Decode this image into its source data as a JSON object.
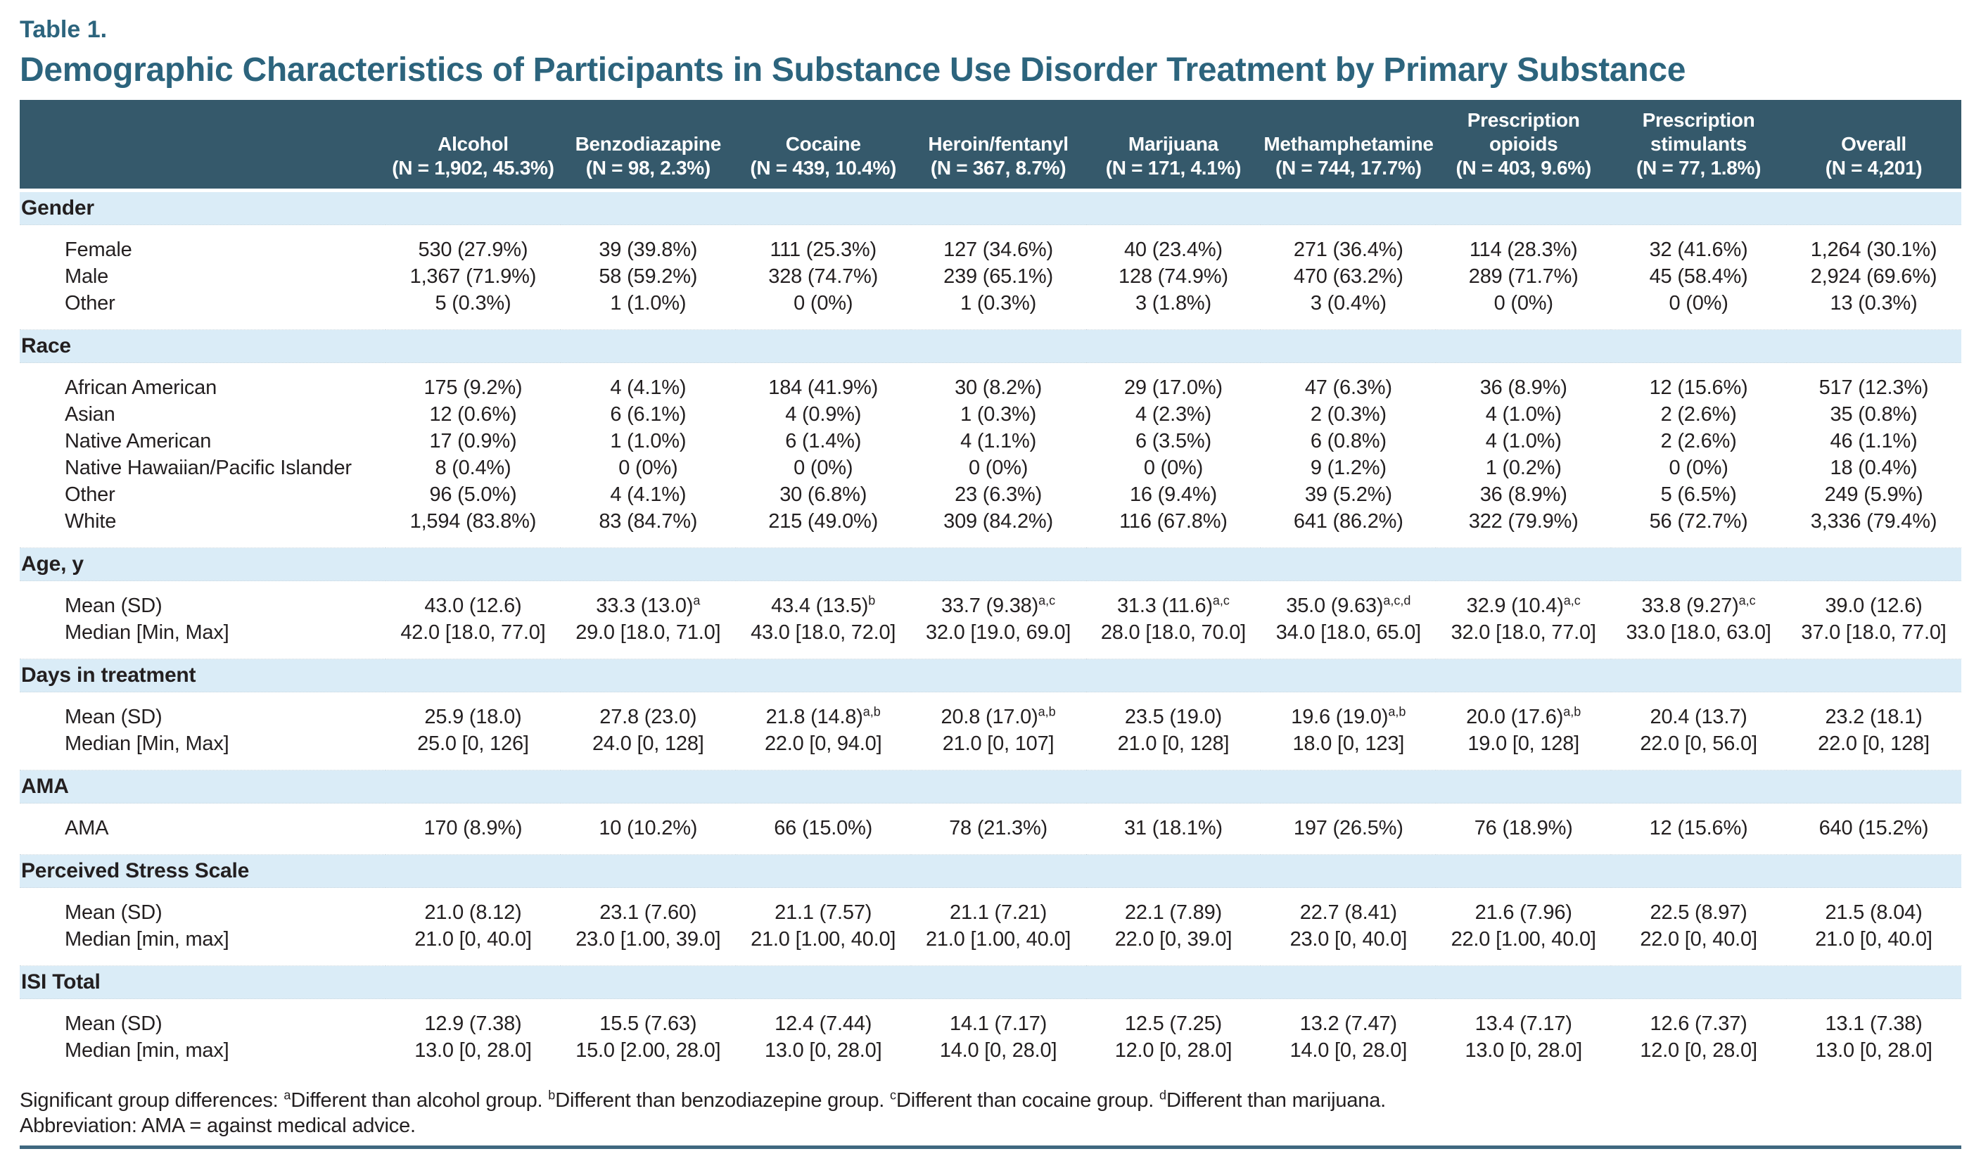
{
  "page": {
    "table_label": "Table 1.",
    "title": "Demographic Characteristics of Participants in Substance Use Disorder Treatment by Primary Substance"
  },
  "colors": {
    "header_bg": "#35596B",
    "section_band_bg": "#DAECF7",
    "title_accent": "#2C647D",
    "bottom_rule": "#3F6880",
    "body_text": "#231F20",
    "header_text": "#FFFFFF"
  },
  "table": {
    "columns": [
      {
        "name": "",
        "n": ""
      },
      {
        "name": "Alcohol",
        "n": "(N = 1,902, 45.3%)"
      },
      {
        "name": "Benzodiazapine",
        "n": "(N = 98, 2.3%)"
      },
      {
        "name": "Cocaine",
        "n": "(N = 439, 10.4%)"
      },
      {
        "name": "Heroin/fentanyl",
        "n": "(N = 367, 8.7%)"
      },
      {
        "name": "Marijuana",
        "n": "(N = 171, 4.1%)"
      },
      {
        "name": "Methamphetamine",
        "n": "(N = 744, 17.7%)"
      },
      {
        "name": "Prescription opioids",
        "n": "(N = 403, 9.6%)"
      },
      {
        "name": "Prescription stimulants",
        "n": "(N = 77, 1.8%)"
      },
      {
        "name": "Overall",
        "n": "(N = 4,201)"
      }
    ],
    "sections": [
      {
        "label": "Gender",
        "rows": [
          {
            "label": "Female",
            "cells": [
              "530 (27.9%)",
              "39 (39.8%)",
              "111 (25.3%)",
              "127 (34.6%)",
              "40 (23.4%)",
              "271 (36.4%)",
              "114 (28.3%)",
              "32 (41.6%)",
              "1,264 (30.1%)"
            ]
          },
          {
            "label": "Male",
            "cells": [
              "1,367 (71.9%)",
              "58 (59.2%)",
              "328 (74.7%)",
              "239 (65.1%)",
              "128 (74.9%)",
              "470 (63.2%)",
              "289 (71.7%)",
              "45 (58.4%)",
              "2,924 (69.6%)"
            ]
          },
          {
            "label": "Other",
            "cells": [
              "5 (0.3%)",
              "1 (1.0%)",
              "0 (0%)",
              "1 (0.3%)",
              "3 (1.8%)",
              "3 (0.4%)",
              "0 (0%)",
              "0 (0%)",
              "13 (0.3%)"
            ]
          }
        ]
      },
      {
        "label": "Race",
        "rows": [
          {
            "label": "African American",
            "cells": [
              "175 (9.2%)",
              "4 (4.1%)",
              "184 (41.9%)",
              "30 (8.2%)",
              "29 (17.0%)",
              "47 (6.3%)",
              "36 (8.9%)",
              "12 (15.6%)",
              "517 (12.3%)"
            ]
          },
          {
            "label": "Asian",
            "cells": [
              "12 (0.6%)",
              "6 (6.1%)",
              "4 (0.9%)",
              "1 (0.3%)",
              "4 (2.3%)",
              "2 (0.3%)",
              "4 (1.0%)",
              "2 (2.6%)",
              "35 (0.8%)"
            ]
          },
          {
            "label": "Native American",
            "cells": [
              "17 (0.9%)",
              "1 (1.0%)",
              "6 (1.4%)",
              "4 (1.1%)",
              "6 (3.5%)",
              "6 (0.8%)",
              "4 (1.0%)",
              "2 (2.6%)",
              "46 (1.1%)"
            ]
          },
          {
            "label": "Native Hawaiian/Pacific Islander",
            "cells": [
              "8 (0.4%)",
              "0 (0%)",
              "0 (0%)",
              "0 (0%)",
              "0 (0%)",
              "9 (1.2%)",
              "1 (0.2%)",
              "0 (0%)",
              "18 (0.4%)"
            ]
          },
          {
            "label": "Other",
            "cells": [
              "96 (5.0%)",
              "4 (4.1%)",
              "30 (6.8%)",
              "23 (6.3%)",
              "16 (9.4%)",
              "39 (5.2%)",
              "36 (8.9%)",
              "5 (6.5%)",
              "249 (5.9%)"
            ]
          },
          {
            "label": "White",
            "cells": [
              "1,594 (83.8%)",
              "83 (84.7%)",
              "215 (49.0%)",
              "309 (84.2%)",
              "116 (67.8%)",
              "641 (86.2%)",
              "322 (79.9%)",
              "56 (72.7%)",
              "3,336 (79.4%)"
            ]
          }
        ]
      },
      {
        "label": "Age, y",
        "rows": [
          {
            "label": "Mean (SD)",
            "cells": [
              "43.0 (12.6)",
              "33.3 (13.0)^{a}",
              "43.4 (13.5)^{b}",
              "33.7 (9.38)^{a,c}",
              "31.3 (11.6)^{a,c}",
              "35.0 (9.63)^{a,c,d}",
              "32.9 (10.4)^{a,c}",
              "33.8 (9.27)^{a,c}",
              "39.0 (12.6)"
            ]
          },
          {
            "label": "Median [Min, Max]",
            "cells": [
              "42.0 [18.0, 77.0]",
              "29.0 [18.0, 71.0]",
              "43.0 [18.0, 72.0]",
              "32.0 [19.0, 69.0]",
              "28.0 [18.0, 70.0]",
              "34.0 [18.0, 65.0]",
              "32.0 [18.0, 77.0]",
              "33.0 [18.0, 63.0]",
              "37.0 [18.0, 77.0]"
            ]
          }
        ]
      },
      {
        "label": "Days in treatment",
        "rows": [
          {
            "label": "Mean (SD)",
            "cells": [
              "25.9 (18.0)",
              "27.8 (23.0)",
              "21.8 (14.8)^{a,b}",
              "20.8 (17.0)^{a,b}",
              "23.5 (19.0)",
              "19.6 (19.0)^{a,b}",
              "20.0 (17.6)^{a,b}",
              "20.4 (13.7)",
              "23.2 (18.1)"
            ]
          },
          {
            "label": "Median [Min, Max]",
            "cells": [
              "25.0 [0, 126]",
              "24.0 [0, 128]",
              "22.0 [0, 94.0]",
              "21.0 [0, 107]",
              "21.0 [0, 128]",
              "18.0 [0, 123]",
              "19.0 [0, 128]",
              "22.0 [0, 56.0]",
              "22.0 [0, 128]"
            ]
          }
        ]
      },
      {
        "label": "AMA",
        "rows": [
          {
            "label": "AMA",
            "cells": [
              "170 (8.9%)",
              "10 (10.2%)",
              "66 (15.0%)",
              "78 (21.3%)",
              "31 (18.1%)",
              "197 (26.5%)",
              "76 (18.9%)",
              "12 (15.6%)",
              "640 (15.2%)"
            ]
          }
        ]
      },
      {
        "label": "Perceived Stress Scale",
        "rows": [
          {
            "label": "Mean (SD)",
            "cells": [
              "21.0 (8.12)",
              "23.1 (7.60)",
              "21.1 (7.57)",
              "21.1 (7.21)",
              "22.1 (7.89)",
              "22.7 (8.41)",
              "21.6 (7.96)",
              "22.5 (8.97)",
              "21.5 (8.04)"
            ]
          },
          {
            "label": "Median [min, max]",
            "cells": [
              "21.0 [0, 40.0]",
              "23.0 [1.00, 39.0]",
              "21.0 [1.00, 40.0]",
              "21.0 [1.00, 40.0]",
              "22.0 [0, 39.0]",
              "23.0 [0, 40.0]",
              "22.0 [1.00, 40.0]",
              "22.0 [0, 40.0]",
              "21.0 [0, 40.0]"
            ]
          }
        ]
      },
      {
        "label": "ISI Total",
        "rows": [
          {
            "label": "Mean (SD)",
            "cells": [
              "12.9 (7.38)",
              "15.5 (7.63)",
              "12.4 (7.44)",
              "14.1 (7.17)",
              "12.5 (7.25)",
              "13.2 (7.47)",
              "13.4 (7.17)",
              "12.6 (7.37)",
              "13.1 (7.38)"
            ]
          },
          {
            "label": "Median [min, max]",
            "cells": [
              "13.0 [0, 28.0]",
              "15.0 [2.00, 28.0]",
              "13.0 [0, 28.0]",
              "14.0 [0, 28.0]",
              "12.0 [0, 28.0]",
              "14.0 [0, 28.0]",
              "13.0 [0, 28.0]",
              "12.0 [0, 28.0]",
              "13.0 [0, 28.0]"
            ]
          }
        ]
      }
    ]
  },
  "footnotes": {
    "significance": "Significant group differences: ^{a}Different than alcohol group. ^{b}Different than benzodiazepine group. ^{c}Different than cocaine group. ^{d}Different than marijuana.",
    "abbreviation": "Abbreviation: AMA = against medical advice."
  }
}
